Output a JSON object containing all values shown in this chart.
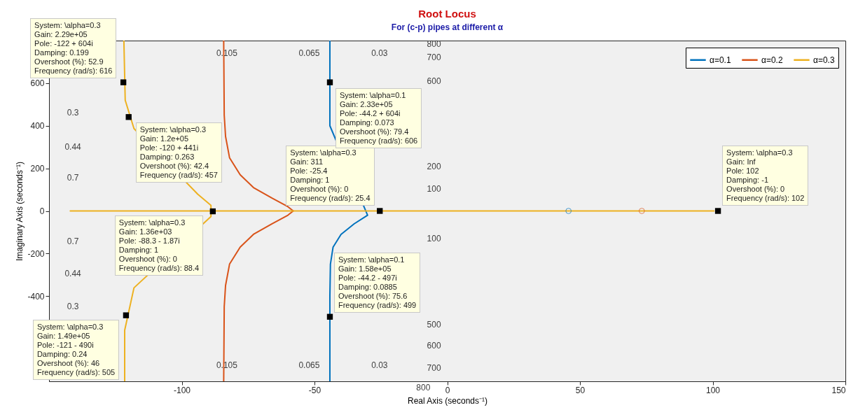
{
  "chart_data": {
    "type": "line",
    "title": "Root Locus",
    "subtitle": "For (c-p) pipes at different α",
    "xlabel": "Real Axis (seconds⁻¹)",
    "ylabel": "Imaginary Axis (seconds⁻¹)",
    "xlim": [
      -150,
      150
    ],
    "xticks": [
      -100,
      -50,
      0,
      50,
      100,
      150
    ],
    "ylim": [
      -800,
      800
    ],
    "yticks": [
      {
        "value": -600,
        "label": null
      },
      -400,
      -200,
      0,
      200,
      400,
      600
    ],
    "legend": "top right",
    "series": [
      {
        "name": "α=0.1",
        "color": "#0072bd",
        "x": [
          -44.2,
          -44.2,
          -30,
          -35,
          -40,
          -43,
          -44,
          -44.2,
          -44.2,
          -44.2
        ],
        "values": [
          800,
          400,
          -20,
          -60,
          -110,
          -170,
          -250,
          -400,
          -600,
          -800
        ]
      },
      {
        "name": "α=0.2",
        "color": "#d95319",
        "x": [
          -84.2,
          -84,
          -83.5,
          -82,
          -78,
          -73,
          -66,
          -60,
          -58,
          null,
          -58,
          -60,
          -66,
          -73,
          -78,
          -82,
          -83.5,
          -84,
          -84.2
        ],
        "values": [
          800,
          450,
          350,
          250,
          170,
          110,
          60,
          20,
          0,
          null,
          0,
          -20,
          -60,
          -110,
          -170,
          -250,
          -350,
          -450,
          -800
        ]
      },
      {
        "name": "α=0.3",
        "color": "#edb120",
        "x": [
          -121.8,
          -121.3,
          -118,
          -94,
          -89,
          -89,
          -118,
          -121.5,
          -121.5,
          null,
          -142,
          100.5
        ],
        "values": [
          800,
          520,
          387,
          79,
          26,
          -26,
          -361,
          -560,
          -800,
          null,
          0,
          0
        ]
      },
      {
        "color": "#0072bd",
        "type": "scatter",
        "marker": "circle",
        "x": [
          45.7
        ],
        "values": [
          0
        ]
      },
      {
        "color": "#d95319",
        "type": "scatter",
        "marker": "circle",
        "x": [
          73.3
        ],
        "values": [
          0
        ]
      }
    ],
    "annotations": [
      {
        "text": "System: \\alpha=0.3\nGain: 2.29e+05\nPole: -122 + 604i\nDamping: 0.199\nOvershoot (%): 52.9\nFrequency (rad/s): 616",
        "x": -122,
        "y": 604
      },
      {
        "text": "System: \\alpha=0.3\nGain: 1.2e+05\nPole: -120 + 441i\nDamping: 0.263\nOvershoot (%): 42.4\nFrequency (rad/s): 457",
        "x": -120,
        "y": 441
      },
      {
        "text": "System: \\alpha=0.3\nGain: 311\nPole: -25.4\nDamping: 1\nOvershoot (%): 0\nFrequency (rad/s): 25.4",
        "x": -25.4,
        "y": 0
      },
      {
        "text": "System: \\alpha=0.1\nGain: 2.33e+05\nPole: -44.2 + 604i\nDamping: 0.073\nOvershoot (%): 79.4\nFrequency (rad/s): 606",
        "x": -44.2,
        "y": 604
      },
      {
        "text": "System: \\alpha=0.3\nGain: Inf\nPole: 102\nDamping: -1\nOvershoot (%): 0\nFrequency (rad/s): 102",
        "x": 102,
        "y": 0
      },
      {
        "text": "System: \\alpha=0.3\nGain: 1.36e+03\nPole: -88.3 - 1.87i\nDamping: 1\nOvershoot (%): 0\nFrequency (rad/s): 88.4",
        "x": -88.3,
        "y": -1.87
      },
      {
        "text": "System: \\alpha=0.1\nGain: 1.58e+05\nPole: -44.2 - 497i\nDamping: 0.0885\nOvershoot (%): 75.6\nFrequency (rad/s): 499",
        "x": -44.2,
        "y": -497
      },
      {
        "text": "System: \\alpha=0.3\nGain: 1.49e+05\nPole: -121 - 490i\nDamping: 0.24\nOvershoot (%): 46\nFrequency (rad/s): 505",
        "x": -121,
        "y": -490
      },
      "0.105",
      "0.065",
      "0.03",
      "0.3",
      "0.44",
      "0.7",
      "0.7",
      "0.44",
      "0.3",
      "0.105",
      "0.065",
      "0.03",
      "800",
      "700",
      "600",
      "200",
      "100",
      "100",
      "500",
      "600",
      "700",
      "800"
    ]
  }
}
